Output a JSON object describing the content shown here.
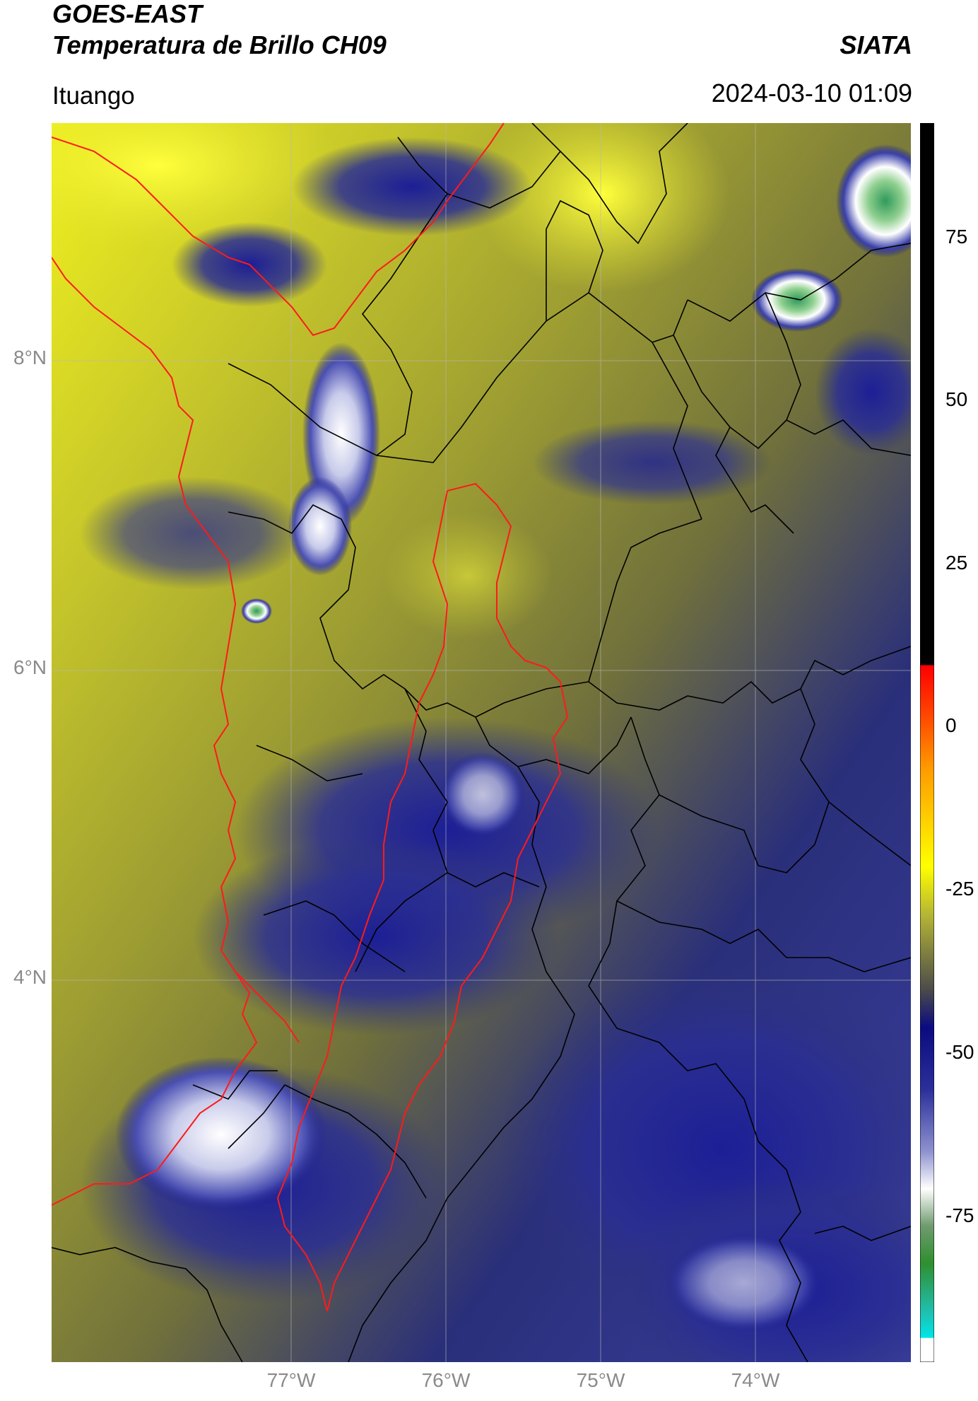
{
  "header": {
    "title_line1": "GOES-EAST",
    "title_line2": "Temperatura de Brillo CH09",
    "organization": "SIATA",
    "location": "Ituango",
    "datetime": "2024-03-10 01:09"
  },
  "map": {
    "latitude_labels": [
      "8°N",
      "6°N",
      "4°N"
    ],
    "longitude_labels": [
      "77°W",
      "76°W",
      "75°W",
      "74°W"
    ]
  },
  "colorbar": {
    "tick_labels": [
      "75",
      "50",
      "25",
      "0",
      "-25",
      "-50",
      "-75"
    ],
    "colors": {
      "black": "#000000",
      "red": "#ff0000",
      "orange": "#ff9900",
      "yellow": "#ffff00",
      "olive": "#6f6f2a",
      "navy": "#0b0b80",
      "white": "#ffffff",
      "green": "#2f8f2f",
      "cyan": "#00e5e5"
    }
  }
}
